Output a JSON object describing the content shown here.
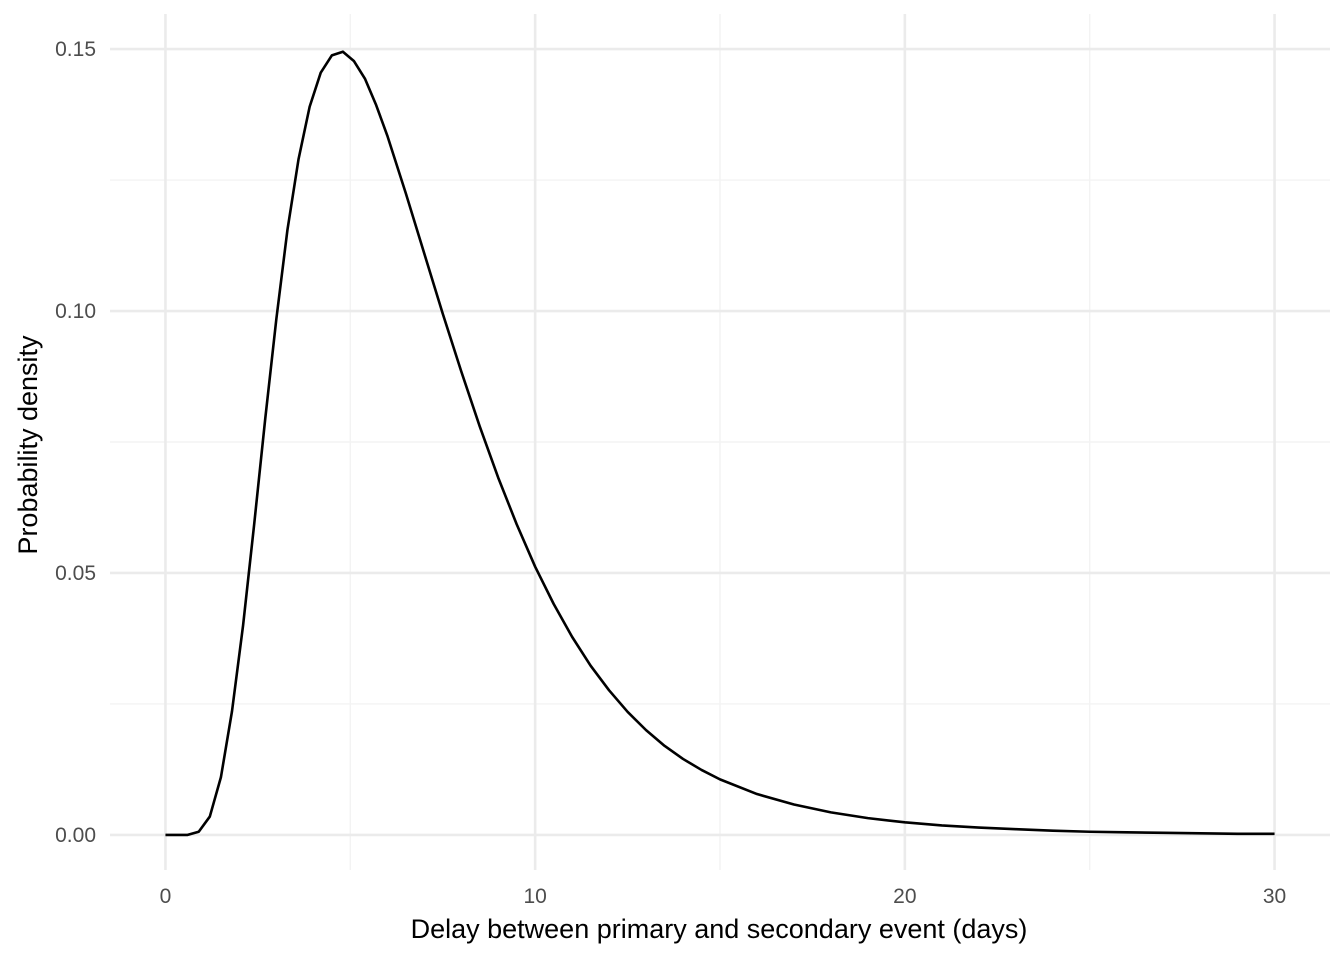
{
  "chart_data": {
    "type": "line",
    "title": "",
    "xlabel": "Delay between primary and secondary event (days)",
    "ylabel": "Probability density",
    "xlim": [
      -1.5,
      31.5
    ],
    "ylim": [
      -0.0067,
      0.1567
    ],
    "x_ticks": [
      0,
      10,
      20,
      30
    ],
    "x_tick_labels": [
      "0",
      "10",
      "20",
      "30"
    ],
    "x_minor_ticks": [
      5,
      15,
      25
    ],
    "y_ticks": [
      0.0,
      0.05,
      0.1,
      0.15
    ],
    "y_tick_labels": [
      "0.00",
      "0.05",
      "0.10",
      "0.15"
    ],
    "y_minor_ticks": [
      0.025,
      0.075,
      0.125
    ],
    "grid": true,
    "legend": "none",
    "colors": {
      "line": "#000000",
      "grid_major": "#ebebeb",
      "grid_minor": "#f3f3f3",
      "background": "#ffffff"
    },
    "series": [
      {
        "x": [
          0,
          0.6,
          0.9,
          1.2,
          1.5,
          1.8,
          2.1,
          2.4,
          2.7,
          3.0,
          3.3,
          3.6,
          3.9,
          4.2,
          4.5,
          4.8,
          5.1,
          5.4,
          5.7,
          6.0,
          6.5,
          7.0,
          7.5,
          8.0,
          8.5,
          9.0,
          9.5,
          10.0,
          10.5,
          11.0,
          11.5,
          12.0,
          12.5,
          13.0,
          13.5,
          14.0,
          14.5,
          15.0,
          16.0,
          17.0,
          18.0,
          19.0,
          20.0,
          21.0,
          22.0,
          23.0,
          24.0,
          25.0,
          26.0,
          27.0,
          28.0,
          29.0,
          30.0
        ],
        "y": [
          0.0,
          0.0,
          0.0006,
          0.0035,
          0.011,
          0.0236,
          0.04,
          0.0593,
          0.0795,
          0.0985,
          0.1155,
          0.129,
          0.139,
          0.1455,
          0.1488,
          0.1495,
          0.1477,
          0.1443,
          0.1393,
          0.1335,
          0.1225,
          0.111,
          0.0995,
          0.0885,
          0.078,
          0.0682,
          0.0593,
          0.0512,
          0.0441,
          0.0378,
          0.0323,
          0.0276,
          0.0235,
          0.02,
          0.017,
          0.0145,
          0.0124,
          0.0106,
          0.0078,
          0.0058,
          0.0043,
          0.0032,
          0.0024,
          0.0018,
          0.0014,
          0.0011,
          0.0008,
          0.0006,
          0.0005,
          0.0004,
          0.0003,
          0.0002,
          0.0002
        ]
      }
    ]
  }
}
